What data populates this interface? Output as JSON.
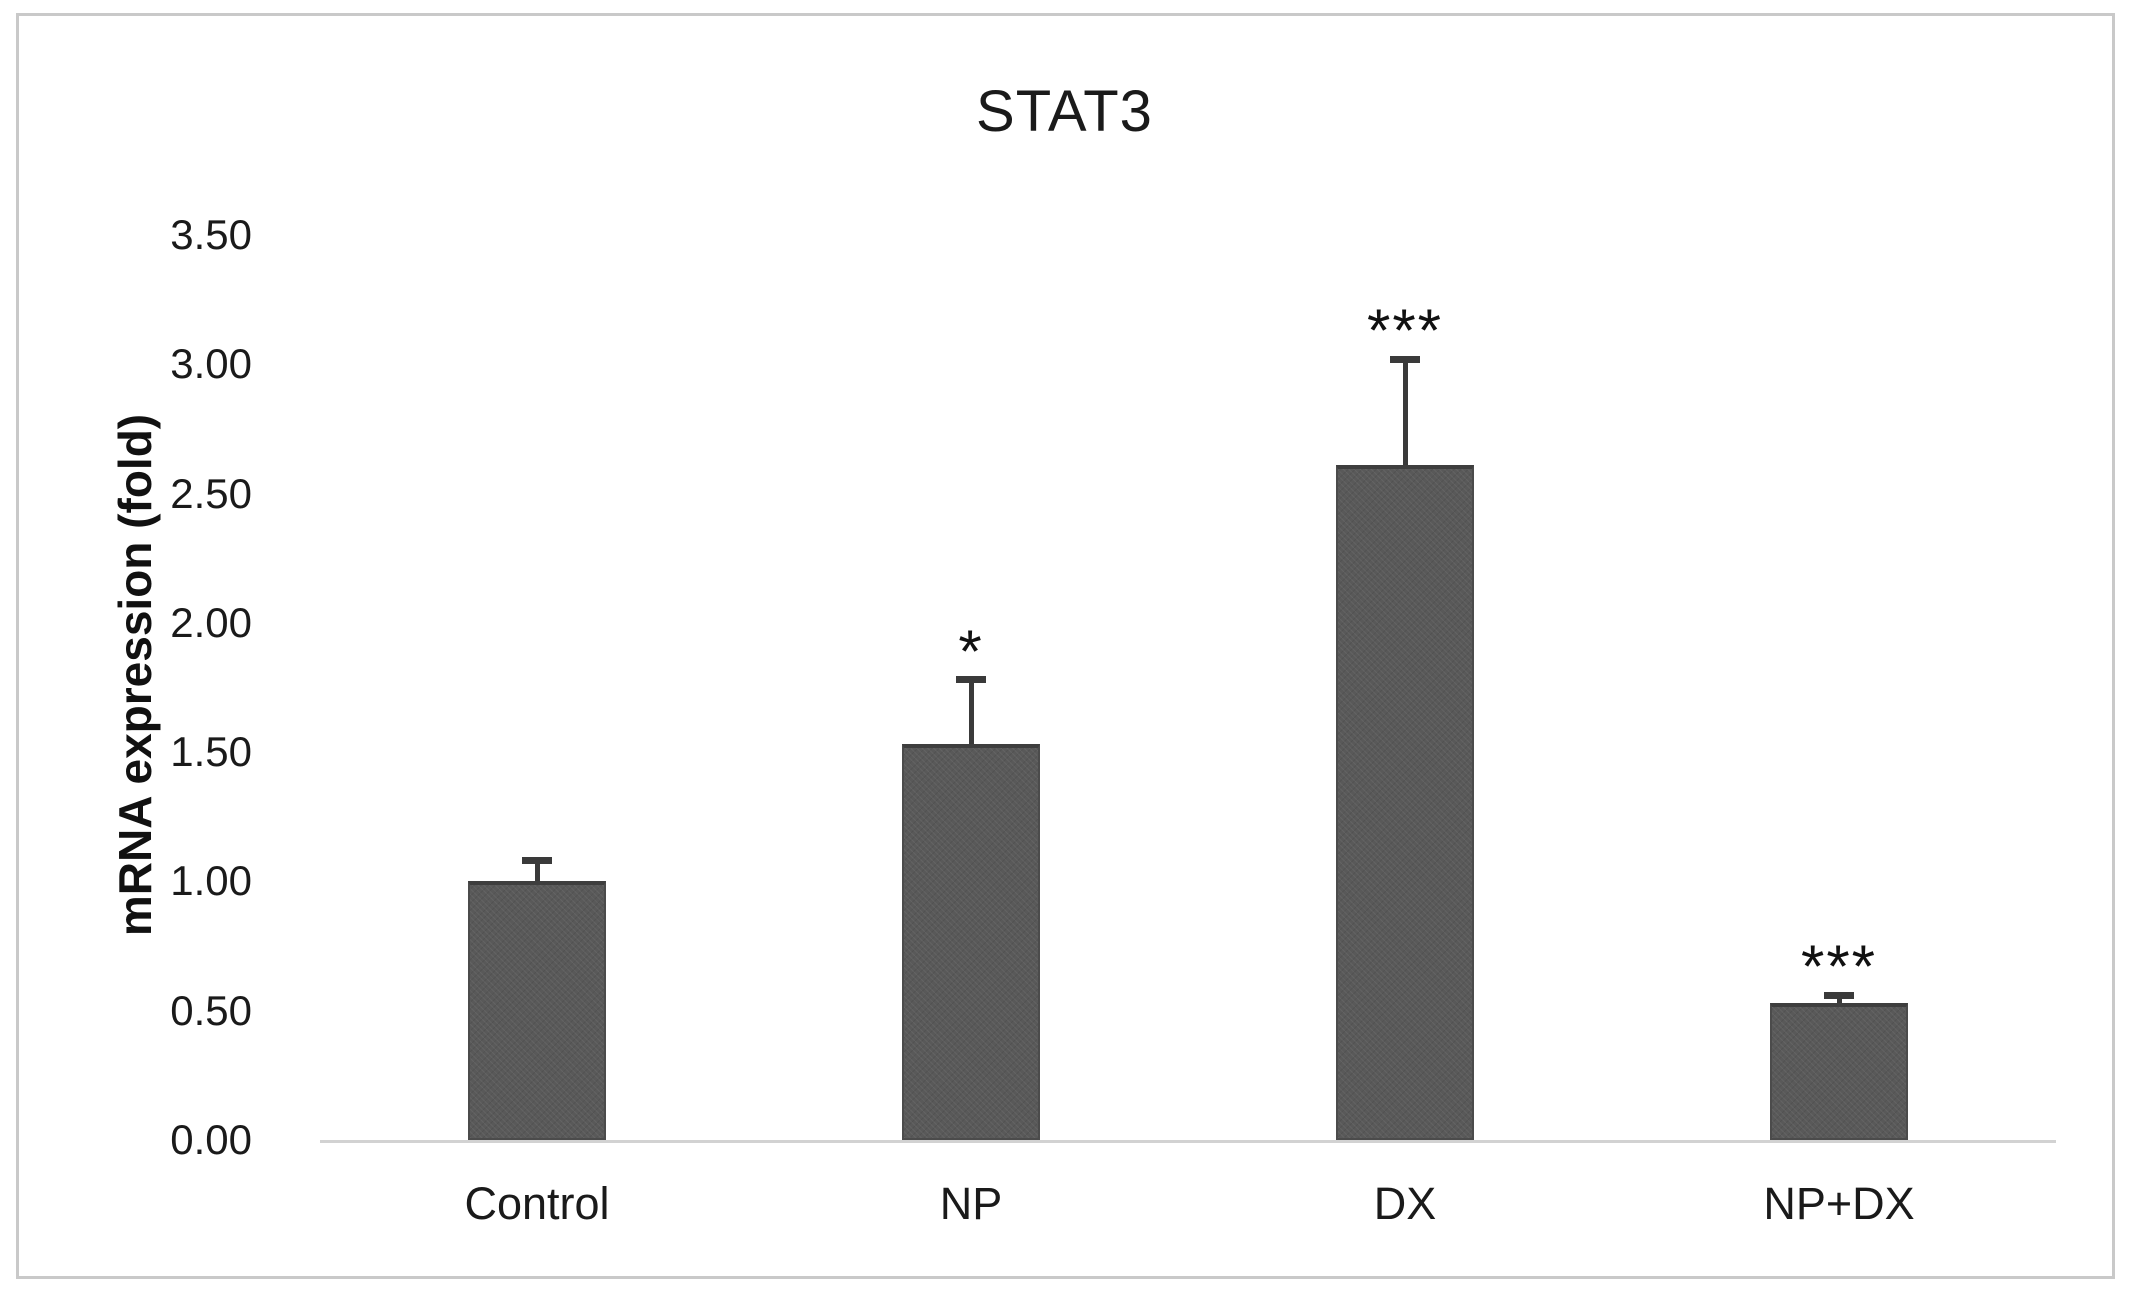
{
  "figure": {
    "background_color": "#ffffff",
    "border_color": "#c9c9c9"
  },
  "chart_data": {
    "type": "bar",
    "title": "STAT3",
    "ylabel": "mRNA expression (fold)",
    "xlabel": "",
    "categories": [
      "Control",
      "NP",
      "DX",
      "NP+DX"
    ],
    "values": [
      1.0,
      1.53,
      2.61,
      0.53
    ],
    "errors_upper": [
      0.08,
      0.25,
      0.41,
      0.03
    ],
    "significance": [
      "",
      "*",
      "***",
      "***"
    ],
    "ylim": [
      0,
      3.5
    ],
    "ytick_step": 0.5,
    "ytick_labels": [
      "0.00",
      "0.50",
      "1.00",
      "1.50",
      "2.00",
      "2.50",
      "3.00",
      "3.50"
    ],
    "grid": false,
    "legend": null,
    "bar_color": "#595959",
    "bar_edge_color": "#3e3e3e",
    "error_bar_color": "#3a3a3a",
    "axis_line_color": "#d2d2d2",
    "text_color": "#1a1a1a"
  }
}
